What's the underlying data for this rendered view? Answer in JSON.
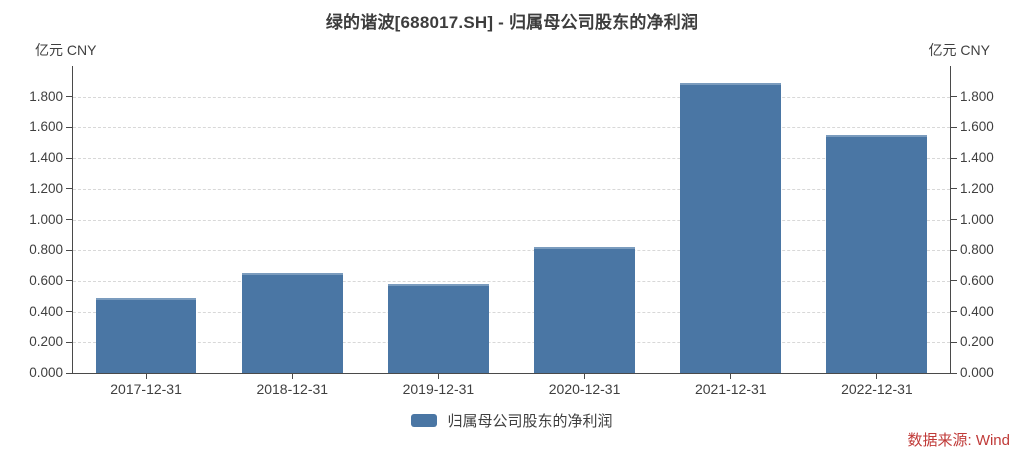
{
  "header": {
    "title": "绿的谐波[688017.SH] - 归属母公司股东的净利润"
  },
  "axes": {
    "unit_left": "亿元 CNY",
    "unit_right": "亿元 CNY",
    "ytick_labels": [
      "0.000",
      "0.200",
      "0.400",
      "0.600",
      "0.800",
      "1.000",
      "1.200",
      "1.400",
      "1.600",
      "1.800"
    ]
  },
  "legend": {
    "items": [
      {
        "label": "归属母公司股东的净利润",
        "color": "#4a76a4"
      }
    ]
  },
  "footer": {
    "source_label": "数据来源: Wind",
    "source_color": "#c03a38"
  },
  "chart_data": {
    "type": "bar",
    "title": "绿的谐波[688017.SH] - 归属母公司股东的净利润",
    "xlabel": "",
    "ylabel": "亿元 CNY",
    "categories": [
      "2017-12-31",
      "2018-12-31",
      "2019-12-31",
      "2020-12-31",
      "2021-12-31",
      "2022-12-31"
    ],
    "series": [
      {
        "name": "归属母公司股东的净利润",
        "color": "#4a76a4",
        "values": [
          0.49,
          0.65,
          0.58,
          0.82,
          1.89,
          1.55
        ]
      }
    ],
    "ylim": [
      0,
      2.0
    ],
    "yticks": [
      0.0,
      0.2,
      0.4,
      0.6,
      0.8,
      1.0,
      1.2,
      1.4,
      1.6,
      1.8
    ],
    "ytick_decimals": 3,
    "grid": true,
    "grid_style": "dashed",
    "legend_position": "bottom",
    "y_axis_mirrored": true,
    "bar_slot_fill_ratio": 0.69
  }
}
